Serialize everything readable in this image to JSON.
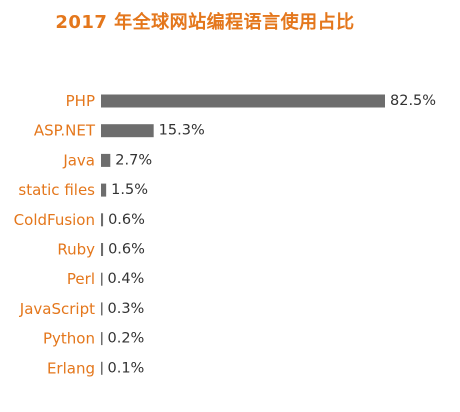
{
  "colors": {
    "title": "#e4771c",
    "category_label": "#e4771c",
    "bar": "#6d6d6d",
    "value_label": "#333333"
  },
  "chart_data": {
    "type": "bar",
    "orientation": "horizontal",
    "title": "2017 年全球网站编程语言使用占比",
    "xlabel": "",
    "ylabel": "",
    "categories": [
      "PHP",
      "ASP.NET",
      "Java",
      "static files",
      "ColdFusion",
      "Ruby",
      "Perl",
      "JavaScript",
      "Python",
      "Erlang"
    ],
    "values": [
      82.5,
      15.3,
      2.7,
      1.5,
      0.6,
      0.6,
      0.4,
      0.3,
      0.2,
      0.1
    ],
    "value_labels": [
      "82.5%",
      "15.3%",
      "2.7%",
      "1.5%",
      "0.6%",
      "0.6%",
      "0.4%",
      "0.3%",
      "0.2%",
      "0.1%"
    ],
    "xlim": [
      0,
      82.5
    ],
    "grid": false,
    "legend": "none"
  }
}
